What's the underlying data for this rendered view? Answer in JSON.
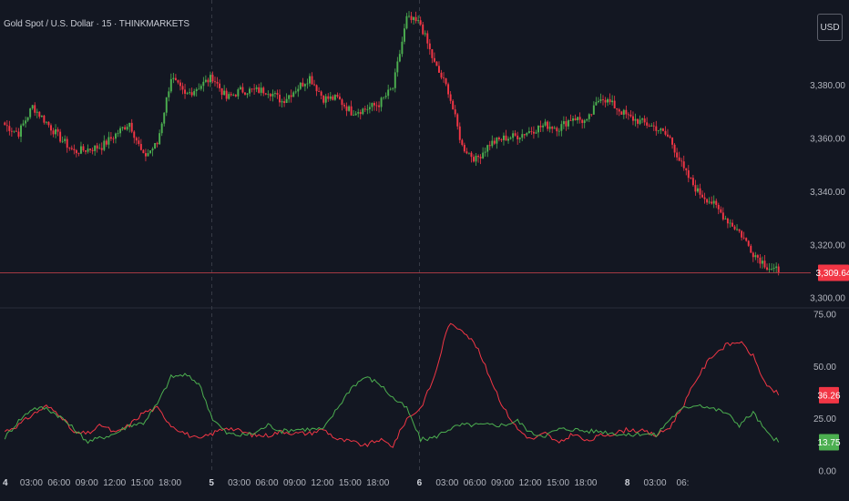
{
  "header": {
    "symbol_title": "Gold Spot / U.S. Dollar · 15 · THINKMARKETS",
    "currency_label": "USD"
  },
  "chart_data": [
    {
      "type": "candlestick",
      "title": "Gold Spot / U.S. Dollar · 15 · THINKMARKETS",
      "price_ticks": [
        "3,380.00",
        "3,360.00",
        "3,340.00",
        "3,320.00",
        "3,300.00"
      ],
      "price_tick_values": [
        3380,
        3360,
        3340,
        3320,
        3300
      ],
      "ylim": [
        3297,
        3412
      ],
      "last_price": 3309.64,
      "last_price_label": "3,309.64",
      "price_path": [
        [
          0,
          3365
        ],
        [
          6,
          3362
        ],
        [
          12,
          3372
        ],
        [
          24,
          3360
        ],
        [
          30,
          3355
        ],
        [
          42,
          3357
        ],
        [
          54,
          3366
        ],
        [
          60,
          3353
        ],
        [
          66,
          3358
        ],
        [
          72,
          3383
        ],
        [
          78,
          3376
        ],
        [
          90,
          3383
        ],
        [
          96,
          3375
        ],
        [
          102,
          3378
        ],
        [
          114,
          3378
        ],
        [
          120,
          3374
        ],
        [
          132,
          3383
        ],
        [
          138,
          3375
        ],
        [
          144,
          3375
        ],
        [
          150,
          3370
        ],
        [
          156,
          3371
        ],
        [
          162,
          3373
        ],
        [
          168,
          3379
        ],
        [
          174,
          3405
        ],
        [
          180,
          3403
        ],
        [
          186,
          3388
        ],
        [
          192,
          3378
        ],
        [
          198,
          3357
        ],
        [
          204,
          3352
        ],
        [
          210,
          3358
        ],
        [
          216,
          3360
        ],
        [
          222,
          3361
        ],
        [
          228,
          3363
        ],
        [
          234,
          3365
        ],
        [
          240,
          3364
        ],
        [
          246,
          3368
        ],
        [
          252,
          3366
        ],
        [
          258,
          3376
        ],
        [
          264,
          3372
        ],
        [
          270,
          3368
        ],
        [
          276,
          3366
        ],
        [
          282,
          3364
        ],
        [
          288,
          3360
        ],
        [
          294,
          3348
        ],
        [
          300,
          3340
        ],
        [
          306,
          3336
        ],
        [
          312,
          3330
        ],
        [
          318,
          3325
        ],
        [
          324,
          3317
        ],
        [
          330,
          3312
        ],
        [
          335,
          3310
        ]
      ]
    },
    {
      "type": "line",
      "indicator_ticks": [
        "75.00",
        "50.00",
        "25.00",
        "0.00"
      ],
      "indicator_tick_values": [
        75,
        50,
        25,
        0
      ],
      "ylim": [
        0,
        75
      ],
      "series": [
        {
          "color": "#f23645",
          "last_value": 36.26,
          "last_label": "36.26",
          "points": [
            [
              0,
              19
            ],
            [
              6,
              22
            ],
            [
              12,
              27
            ],
            [
              18,
              31
            ],
            [
              24,
              27
            ],
            [
              30,
              18
            ],
            [
              36,
              18
            ],
            [
              42,
              22
            ],
            [
              48,
              18
            ],
            [
              54,
              22
            ],
            [
              60,
              28
            ],
            [
              66,
              30
            ],
            [
              72,
              22
            ],
            [
              78,
              18
            ],
            [
              84,
              15
            ],
            [
              90,
              18
            ],
            [
              96,
              21
            ],
            [
              102,
              19
            ],
            [
              108,
              17
            ],
            [
              114,
              17
            ],
            [
              120,
              19
            ],
            [
              126,
              18
            ],
            [
              132,
              18
            ],
            [
              138,
              20
            ],
            [
              144,
              15
            ],
            [
              150,
              14
            ],
            [
              156,
              12
            ],
            [
              162,
              15
            ],
            [
              168,
              12
            ],
            [
              174,
              25
            ],
            [
              180,
              30
            ],
            [
              186,
              45
            ],
            [
              192,
              70
            ],
            [
              198,
              68
            ],
            [
              204,
              60
            ],
            [
              210,
              45
            ],
            [
              216,
              30
            ],
            [
              222,
              20
            ],
            [
              228,
              15
            ],
            [
              234,
              18
            ],
            [
              240,
              13
            ],
            [
              246,
              18
            ],
            [
              252,
              14
            ],
            [
              258,
              17
            ],
            [
              264,
              18
            ],
            [
              270,
              20
            ],
            [
              276,
              19
            ],
            [
              282,
              17
            ],
            [
              288,
              21
            ],
            [
              294,
              32
            ],
            [
              300,
              45
            ],
            [
              306,
              55
            ],
            [
              312,
              60
            ],
            [
              318,
              62
            ],
            [
              324,
              55
            ],
            [
              330,
              40
            ],
            [
              335,
              37
            ]
          ]
        },
        {
          "color": "#4caf50",
          "last_value": 13.75,
          "last_label": "13.75",
          "points": [
            [
              0,
              16
            ],
            [
              6,
              24
            ],
            [
              12,
              30
            ],
            [
              18,
              30
            ],
            [
              24,
              26
            ],
            [
              30,
              20
            ],
            [
              36,
              14
            ],
            [
              42,
              16
            ],
            [
              48,
              18
            ],
            [
              54,
              22
            ],
            [
              60,
              23
            ],
            [
              66,
              32
            ],
            [
              72,
              45
            ],
            [
              78,
              46
            ],
            [
              84,
              42
            ],
            [
              90,
              25
            ],
            [
              96,
              18
            ],
            [
              102,
              17
            ],
            [
              108,
              18
            ],
            [
              114,
              22
            ],
            [
              120,
              19
            ],
            [
              126,
              20
            ],
            [
              132,
              20
            ],
            [
              138,
              20
            ],
            [
              144,
              30
            ],
            [
              150,
              40
            ],
            [
              156,
              45
            ],
            [
              162,
              42
            ],
            [
              168,
              35
            ],
            [
              174,
              30
            ],
            [
              180,
              15
            ],
            [
              186,
              16
            ],
            [
              192,
              20
            ],
            [
              198,
              22
            ],
            [
              204,
              22
            ],
            [
              210,
              22
            ],
            [
              216,
              22
            ],
            [
              222,
              24
            ],
            [
              228,
              18
            ],
            [
              234,
              17
            ],
            [
              240,
              20
            ],
            [
              246,
              20
            ],
            [
              252,
              19
            ],
            [
              258,
              19
            ],
            [
              264,
              18
            ],
            [
              270,
              17
            ],
            [
              276,
              18
            ],
            [
              282,
              17
            ],
            [
              288,
              25
            ],
            [
              294,
              30
            ],
            [
              300,
              32
            ],
            [
              306,
              30
            ],
            [
              312,
              28
            ],
            [
              318,
              22
            ],
            [
              324,
              28
            ],
            [
              330,
              18
            ],
            [
              335,
              14
            ]
          ]
        }
      ]
    }
  ],
  "time_axis": {
    "bar_count": 336,
    "labels": [
      {
        "bar": 0,
        "text": "4",
        "major": true
      },
      {
        "bar": 12,
        "text": "03:00",
        "major": false
      },
      {
        "bar": 24,
        "text": "06:00",
        "major": false
      },
      {
        "bar": 36,
        "text": "09:00",
        "major": false
      },
      {
        "bar": 48,
        "text": "12:00",
        "major": false
      },
      {
        "bar": 60,
        "text": "15:00",
        "major": false
      },
      {
        "bar": 72,
        "text": "18:00",
        "major": false
      },
      {
        "bar": 90,
        "text": "5",
        "major": true
      },
      {
        "bar": 102,
        "text": "03:00",
        "major": false
      },
      {
        "bar": 114,
        "text": "06:00",
        "major": false
      },
      {
        "bar": 126,
        "text": "09:00",
        "major": false
      },
      {
        "bar": 138,
        "text": "12:00",
        "major": false
      },
      {
        "bar": 150,
        "text": "15:00",
        "major": false
      },
      {
        "bar": 162,
        "text": "18:00",
        "major": false
      },
      {
        "bar": 180,
        "text": "6",
        "major": true
      },
      {
        "bar": 192,
        "text": "03:00",
        "major": false
      },
      {
        "bar": 204,
        "text": "06:00",
        "major": false
      },
      {
        "bar": 216,
        "text": "09:00",
        "major": false
      },
      {
        "bar": 228,
        "text": "12:00",
        "major": false
      },
      {
        "bar": 240,
        "text": "15:00",
        "major": false
      },
      {
        "bar": 252,
        "text": "18:00",
        "major": false
      },
      {
        "bar": 270,
        "text": "8",
        "major": true
      },
      {
        "bar": 282,
        "text": "03:00",
        "major": false
      },
      {
        "bar": 294,
        "text": "06:",
        "major": false
      }
    ],
    "session_dividers": [
      90,
      180
    ]
  },
  "colors": {
    "background": "#131722",
    "up": "#4caf50",
    "down": "#f23645",
    "last_price_line": "#a33a43",
    "pane_separator": "#2a2e39",
    "axis_text": "#b2b5be"
  }
}
